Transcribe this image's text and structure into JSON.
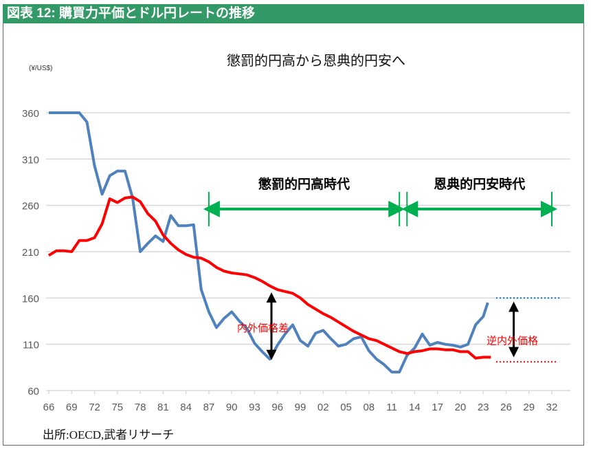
{
  "header": {
    "title": "図表 12: 購買力平価とドル円レートの推移"
  },
  "source": "出所:OECD,武者リサーチ",
  "chart_data": {
    "type": "line",
    "title": "懲罰的円高から恩典的円安へ",
    "ylabel": "(¥/US$)",
    "ylim": [
      60,
      360
    ],
    "yticks": [
      60,
      110,
      160,
      210,
      260,
      310,
      360
    ],
    "xlim": [
      1966,
      2032
    ],
    "xtick_labels": [
      "66",
      "69",
      "72",
      "75",
      "78",
      "81",
      "84",
      "87",
      "90",
      "93",
      "96",
      "99",
      "02",
      "05",
      "08",
      "11",
      "14",
      "17",
      "20",
      "23",
      "26",
      "29",
      "32"
    ],
    "grid": true,
    "series": [
      {
        "name": "ドル円レート",
        "color": "#4f81bd",
        "x": [
          1966,
          1967,
          1968,
          1969,
          1970,
          1971,
          1972,
          1973,
          1974,
          1975,
          1976,
          1977,
          1978,
          1979,
          1980,
          1981,
          1982,
          1983,
          1984,
          1985,
          1986,
          1987,
          1988,
          1989,
          1990,
          1991,
          1992,
          1993,
          1994,
          1995,
          1996,
          1997,
          1998,
          1999,
          2000,
          2001,
          2002,
          2003,
          2004,
          2005,
          2006,
          2007,
          2008,
          2009,
          2010,
          2011,
          2012,
          2013,
          2014,
          2015,
          2016,
          2017,
          2018,
          2019,
          2020,
          2021,
          2022,
          2023,
          2023.6
        ],
        "values": [
          360,
          360,
          360,
          360,
          360,
          350,
          303,
          272,
          292,
          297,
          297,
          268,
          210,
          219,
          227,
          221,
          249,
          238,
          238,
          239,
          169,
          145,
          128,
          138,
          145,
          135,
          127,
          111,
          102,
          94,
          109,
          121,
          131,
          114,
          108,
          122,
          125,
          116,
          108,
          110,
          116,
          118,
          103,
          94,
          88,
          80,
          80,
          98,
          106,
          121,
          109,
          112,
          110,
          109,
          107,
          110,
          131,
          140,
          155
        ]
      },
      {
        "name": "購買力平価",
        "color": "#ff0000",
        "x": [
          1966,
          1967,
          1968,
          1969,
          1970,
          1971,
          1972,
          1973,
          1974,
          1975,
          1976,
          1977,
          1978,
          1979,
          1980,
          1981,
          1982,
          1983,
          1984,
          1985,
          1986,
          1987,
          1988,
          1989,
          1990,
          1991,
          1992,
          1993,
          1994,
          1995,
          1996,
          1997,
          1998,
          1999,
          2000,
          2001,
          2002,
          2003,
          2004,
          2005,
          2006,
          2007,
          2008,
          2009,
          2010,
          2011,
          2012,
          2013,
          2014,
          2015,
          2016,
          2017,
          2018,
          2019,
          2020,
          2021,
          2022,
          2023,
          2024
        ],
        "values": [
          206,
          211,
          211,
          210,
          222,
          222,
          225,
          240,
          267,
          263,
          268,
          269,
          264,
          251,
          243,
          228,
          219,
          212,
          207,
          204,
          203,
          199,
          193,
          189,
          187,
          186,
          185,
          182,
          178,
          173,
          169,
          167,
          165,
          160,
          153,
          148,
          143,
          139,
          134,
          129,
          124,
          120,
          116,
          114,
          110,
          106,
          102,
          100,
          102,
          103,
          105,
          105,
          104,
          104,
          102,
          102,
          95,
          96,
          96
        ]
      }
    ],
    "annotations": {
      "period1": {
        "label": "懲罰的円高時代",
        "from": 1987,
        "to": 2012
      },
      "period2": {
        "label": "恩典的円安時代",
        "from": 2013,
        "to": 2032
      },
      "gap1": {
        "label": "内外価格差",
        "x": 1995,
        "from": 94,
        "to": 165
      },
      "gap2": {
        "label": "逆内外価格",
        "x": 2027,
        "from": 97,
        "to": 155
      },
      "dotted_blue": {
        "value": 160,
        "from": 2025,
        "to": 2033
      },
      "dotted_red": {
        "value": 91,
        "from": 2025,
        "to": 2033
      }
    }
  }
}
